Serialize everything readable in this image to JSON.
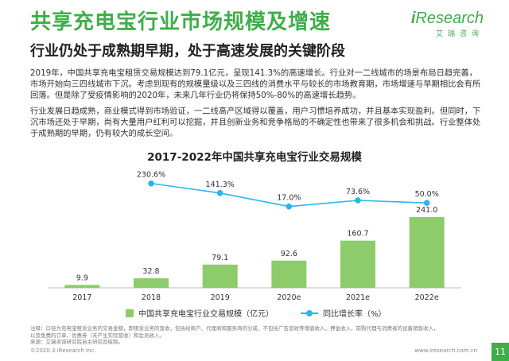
{
  "header": {
    "title": "共享充电宝行业市场规模及增速",
    "subtitle": "行业仍处于成熟期早期，处于高速发展的关键阶段",
    "logo_text_i": "i",
    "logo_text_rest": "Research",
    "logo_sub": "艾瑞咨询"
  },
  "body": {
    "paragraph1": "2019年，中国共享充电宝租赁交易规模达到79.1亿元，呈现141.3%的高速增长。行业对一二线城市的场景布局日趋完善，市场开始向三四线城市下沉。考虑到现有的规模量级以及三四线的消费水平与较长的市场教育期，市场增速与早期相比会有所回落。但是除了受疫情影响的2020年，未来几年行业仍将保持50%-80%的高速增长趋势。",
    "paragraph2": "行业发展日趋成熟，商业模式得到市场验证，一二线高产区域得以覆盖，用户习惯培养成功，并且基本实现盈利。但同时，下沉市场还处于早期，尚有大量用户红利可以挖掘，并且创新业务和竞争格局的不确定性也带来了很多机会和挑战。行业整体处于成熟期的早期，仍有较大的成长空间。"
  },
  "chart_data": {
    "type": "bar",
    "title": "2017-2022年中国共享充电宝行业交易规模",
    "categories": [
      "2017",
      "2018",
      "2019",
      "2020e",
      "2021e",
      "2022e"
    ],
    "series": [
      {
        "name": "中国共享充电宝行业交易规模（亿元）",
        "type": "bar",
        "values": [
          9.9,
          32.8,
          79.1,
          92.6,
          160.7,
          241.0
        ],
        "labels": [
          "9.9",
          "32.8",
          "79.1",
          "92.6",
          "160.7",
          "241.0"
        ]
      },
      {
        "name": "同比增长率（%）",
        "type": "line",
        "values": [
          null,
          230.6,
          141.3,
          17.0,
          73.6,
          50.0
        ],
        "labels": [
          "",
          "230.6%",
          "141.3%",
          "17.0%",
          "73.6%",
          "50.0%"
        ]
      }
    ],
    "ylim": [
      0,
      260
    ],
    "line_ylim": [
      0,
      250
    ],
    "grid": false,
    "legend_position": "bottom",
    "colors": {
      "bar": "#8ecb6a",
      "line": "#29b6e8"
    }
  },
  "footer": {
    "note1": "注释：口径为充电宝租赁业务的交易金额，即租赁业务的营收，包括给商户、代理商和服务商的分成，不包括广告营收等增值收入，押金收入，前购代理与消费者的设备销售收入，",
    "note2": "以及免费的订单，优惠券（未产生实际营收）和会员收入。",
    "source": "来源：艾瑞咨询研究院自主研究及绘制。",
    "copyright": "©2020.3 iResearch Inc.",
    "website": "www.iresearch.com.cn",
    "page": "11"
  },
  "theme": {
    "accent": "#3fae49"
  }
}
